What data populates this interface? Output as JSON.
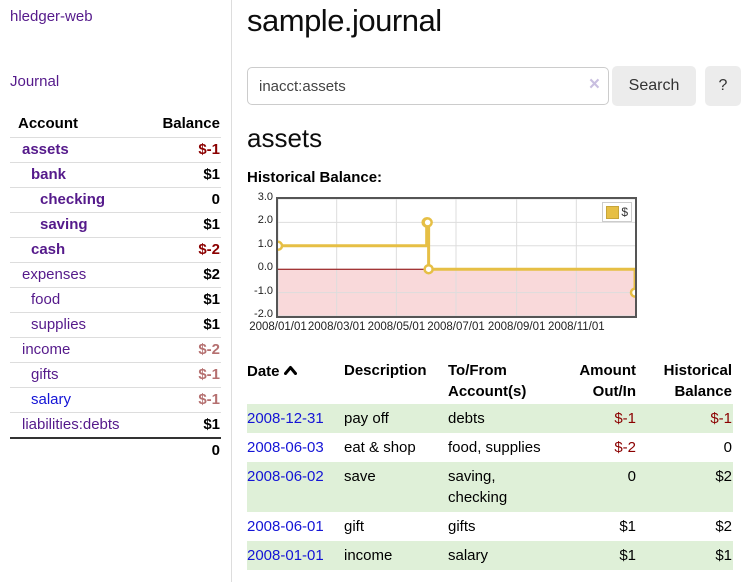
{
  "sidebar": {
    "brand": "hledger-web",
    "journal_link": "Journal",
    "accounts": {
      "header_account": "Account",
      "header_balance": "Balance",
      "rows": [
        {
          "name": "assets",
          "balance": "$-1",
          "name_class": "acct l0 sel",
          "bal_class": "bal neg"
        },
        {
          "name": "bank",
          "balance": "$1",
          "name_class": "acct l1 sel",
          "bal_class": "bal"
        },
        {
          "name": "checking",
          "balance": "0",
          "name_class": "acct l2 sel",
          "bal_class": "bal"
        },
        {
          "name": "saving",
          "balance": "$1",
          "name_class": "acct l2 sel",
          "bal_class": "bal"
        },
        {
          "name": "cash",
          "balance": "$-2",
          "name_class": "acct l1 sel",
          "bal_class": "bal neg"
        },
        {
          "name": "expenses",
          "balance": "$2",
          "name_class": "acct l0",
          "bal_class": "bal"
        },
        {
          "name": "food",
          "balance": "$1",
          "name_class": "acct l1",
          "bal_class": "bal"
        },
        {
          "name": "supplies",
          "balance": "$1",
          "name_class": "acct l1",
          "bal_class": "bal"
        },
        {
          "name": "income",
          "balance": "$-2",
          "name_class": "acct l0",
          "bal_class": "bal dimneg"
        },
        {
          "name": "gifts",
          "balance": "$-1",
          "name_class": "acct l1",
          "bal_class": "bal dimneg"
        },
        {
          "name": "salary",
          "balance": "$-1",
          "name_class": "acct l1 blue",
          "bal_class": "bal dimneg"
        },
        {
          "name": "liabilities:debts",
          "balance": "$1",
          "name_class": "acct l0",
          "bal_class": "bal"
        }
      ],
      "total": "0"
    }
  },
  "main": {
    "title": "sample.journal",
    "search": {
      "value": "inacct:assets",
      "clear_icon": "×",
      "button_label": "Search",
      "help_label": "?"
    },
    "account_heading": "assets",
    "chart_title": "Historical Balance:",
    "register": {
      "headers": {
        "date": "Date",
        "description": "Description",
        "tofrom": "To/From Account(s)",
        "amount": "Amount Out/In",
        "balance": "Historical Balance"
      },
      "rows": [
        {
          "date": "2008-12-31",
          "description": "pay off",
          "accounts": "debts",
          "amount": "$-1",
          "balance": "$-1",
          "amount_class": "num neg",
          "balance_class": "num neg"
        },
        {
          "date": "2008-06-03",
          "description": "eat & shop",
          "accounts": "food, supplies",
          "amount": "$-2",
          "balance": "0",
          "amount_class": "num neg",
          "balance_class": "num"
        },
        {
          "date": "2008-06-02",
          "description": "save",
          "accounts": "saving, checking",
          "amount": "0",
          "balance": "$2",
          "amount_class": "num",
          "balance_class": "num"
        },
        {
          "date": "2008-06-01",
          "description": "gift",
          "accounts": "gifts",
          "amount": "$1",
          "balance": "$2",
          "amount_class": "num",
          "balance_class": "num"
        },
        {
          "date": "2008-01-01",
          "description": "income",
          "accounts": "salary",
          "amount": "$1",
          "balance": "$1",
          "amount_class": "num",
          "balance_class": "num"
        }
      ]
    }
  },
  "chart_data": {
    "type": "line",
    "title": "Historical Balance",
    "legend": "$",
    "series": [
      {
        "name": "$",
        "step": true,
        "points": [
          [
            "2008-01-01",
            1
          ],
          [
            "2008-06-01",
            2
          ],
          [
            "2008-06-02",
            2
          ],
          [
            "2008-06-03",
            0
          ],
          [
            "2008-12-31",
            -1
          ]
        ]
      }
    ],
    "x_start": "2008-01-01",
    "x_end": "2008-12-31",
    "x_ticks": [
      "2008/01/01",
      "2008/03/01",
      "2008/05/01",
      "2008/07/01",
      "2008/09/01",
      "2008/11/01"
    ],
    "y_ticks": [
      "3.0",
      "2.0",
      "1.0",
      "0.0",
      "-1.0",
      "-2.0"
    ],
    "ylim": [
      -2,
      3
    ],
    "grid": true,
    "legend_position": "top-right",
    "colors": {
      "line": "#e6bf45",
      "marker_fill": "#ffffff",
      "negative_region": "#f9d9da",
      "zero_line": "#8b0000",
      "grid": "#dddddd",
      "border": "#555555"
    }
  }
}
